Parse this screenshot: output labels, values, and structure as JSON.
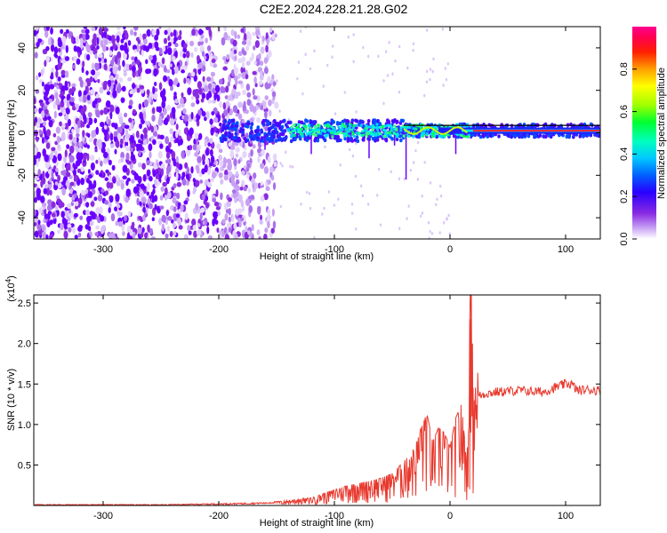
{
  "title": "C2E2.2024.228.21.28.G02",
  "chart_data": [
    {
      "type": "heatmap",
      "xlabel": "Height of straight line (km)",
      "ylabel": "Frequency (Hz)",
      "xlim": [
        -360,
        130
      ],
      "ylim": [
        -50,
        50
      ],
      "xticks": [
        -300,
        -200,
        -100,
        0,
        100
      ],
      "yticks": [
        -40,
        -20,
        0,
        20,
        40
      ],
      "colorbar": {
        "label": "Normalized spectral amplitude",
        "range": [
          0.0,
          1.0
        ],
        "ticks": [
          "0.0",
          "0.2",
          "0.4",
          "0.6",
          "0.8"
        ],
        "colors": [
          "#ffffff",
          "#b07cf0",
          "#6a00ff",
          "#0000ff",
          "#00bfff",
          "#00ffd0",
          "#00ff00",
          "#c8ff00",
          "#ffff00",
          "#ff9900",
          "#ff0000",
          "#ff00aa"
        ]
      },
      "features": {
        "noise_region_x": [
          -360,
          -150
        ],
        "signal_band_x": [
          -200,
          130
        ],
        "signal_center_freq_hz": 1,
        "signal_band_halfwidth_hz": 3
      }
    },
    {
      "type": "line",
      "xlabel": "Height of straight line (km)",
      "ylabel": "SNR (10 * v/v)",
      "yscale_label": "(x10",
      "yscale_exp": "4",
      "yscale_close": ")",
      "xlim": [
        -360,
        130
      ],
      "ylim": [
        0,
        2.6
      ],
      "xticks": [
        -300,
        -200,
        -100,
        0,
        100
      ],
      "yticks": [
        0.5,
        1.0,
        1.5,
        2.0,
        2.5
      ],
      "ytick_labels": [
        "0.5",
        "1.0",
        "1.5",
        "2.0",
        "2.5"
      ],
      "color": "#e8392e",
      "series": [
        {
          "x": [
            -360,
            -300,
            -250,
            -200,
            -160,
            -140,
            -120,
            -110,
            -100,
            -90,
            -80,
            -70,
            -60,
            -50,
            -40,
            -30,
            -25,
            -20,
            -15,
            -10,
            -5,
            0,
            5,
            10,
            15,
            18,
            20,
            22,
            25,
            30,
            40,
            60,
            80,
            90,
            100,
            105,
            110,
            120,
            130
          ],
          "y": [
            0.01,
            0.01,
            0.01,
            0.02,
            0.03,
            0.05,
            0.08,
            0.12,
            0.16,
            0.2,
            0.22,
            0.25,
            0.28,
            0.33,
            0.45,
            0.6,
            0.8,
            0.95,
            0.65,
            0.8,
            0.75,
            0.6,
            0.9,
            1.05,
            0.35,
            2.55,
            1.0,
            1.3,
            1.35,
            1.38,
            1.4,
            1.42,
            1.4,
            1.45,
            1.5,
            1.5,
            1.42,
            1.43,
            1.42
          ]
        }
      ]
    }
  ]
}
